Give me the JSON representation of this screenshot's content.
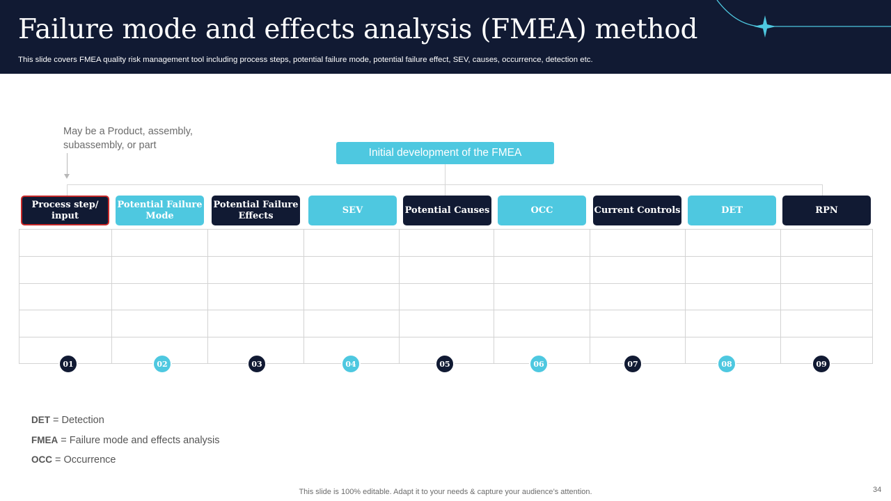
{
  "header": {
    "title": "Failure mode and effects analysis (FMEA) method",
    "subtitle": "This slide covers FMEA  quality risk management tool including process steps, potential failure mode, potential failure effect, SEV,  causes, occurrence, detection etc."
  },
  "note_top": "May be a Product,  assembly, subassembly,  or part",
  "init_box": "Initial development of the FMEA",
  "steps": [
    {
      "label": "Process step/ input",
      "num": "01",
      "style": "dark"
    },
    {
      "label": "Potential Failure Mode",
      "num": "02",
      "style": "light"
    },
    {
      "label": "Potential Failure Effects",
      "num": "03",
      "style": "dark"
    },
    {
      "label": "SEV",
      "num": "04",
      "style": "light"
    },
    {
      "label": "Potential Causes",
      "num": "05",
      "style": "dark"
    },
    {
      "label": "OCC",
      "num": "06",
      "style": "light"
    },
    {
      "label": "Current Controls",
      "num": "07",
      "style": "dark"
    },
    {
      "label": "DET",
      "num": "08",
      "style": "light"
    },
    {
      "label": "RPN",
      "num": "09",
      "style": "dark"
    }
  ],
  "legend": [
    {
      "abbr": "DET",
      "sep": " = ",
      "text": "Detection"
    },
    {
      "abbr": "FMEA",
      "sep": " = ",
      "text": "Failure mode and effects analysis"
    },
    {
      "abbr": "OCC",
      "sep": " = ",
      "text": "Occurrence"
    }
  ],
  "footer": "This slide is 100% editable. Adapt it to your needs & capture your audience’s attention.",
  "page_number": "34",
  "colors": {
    "dark": "#111a33",
    "accent": "#4ec8e0",
    "first_border": "#c62828"
  }
}
